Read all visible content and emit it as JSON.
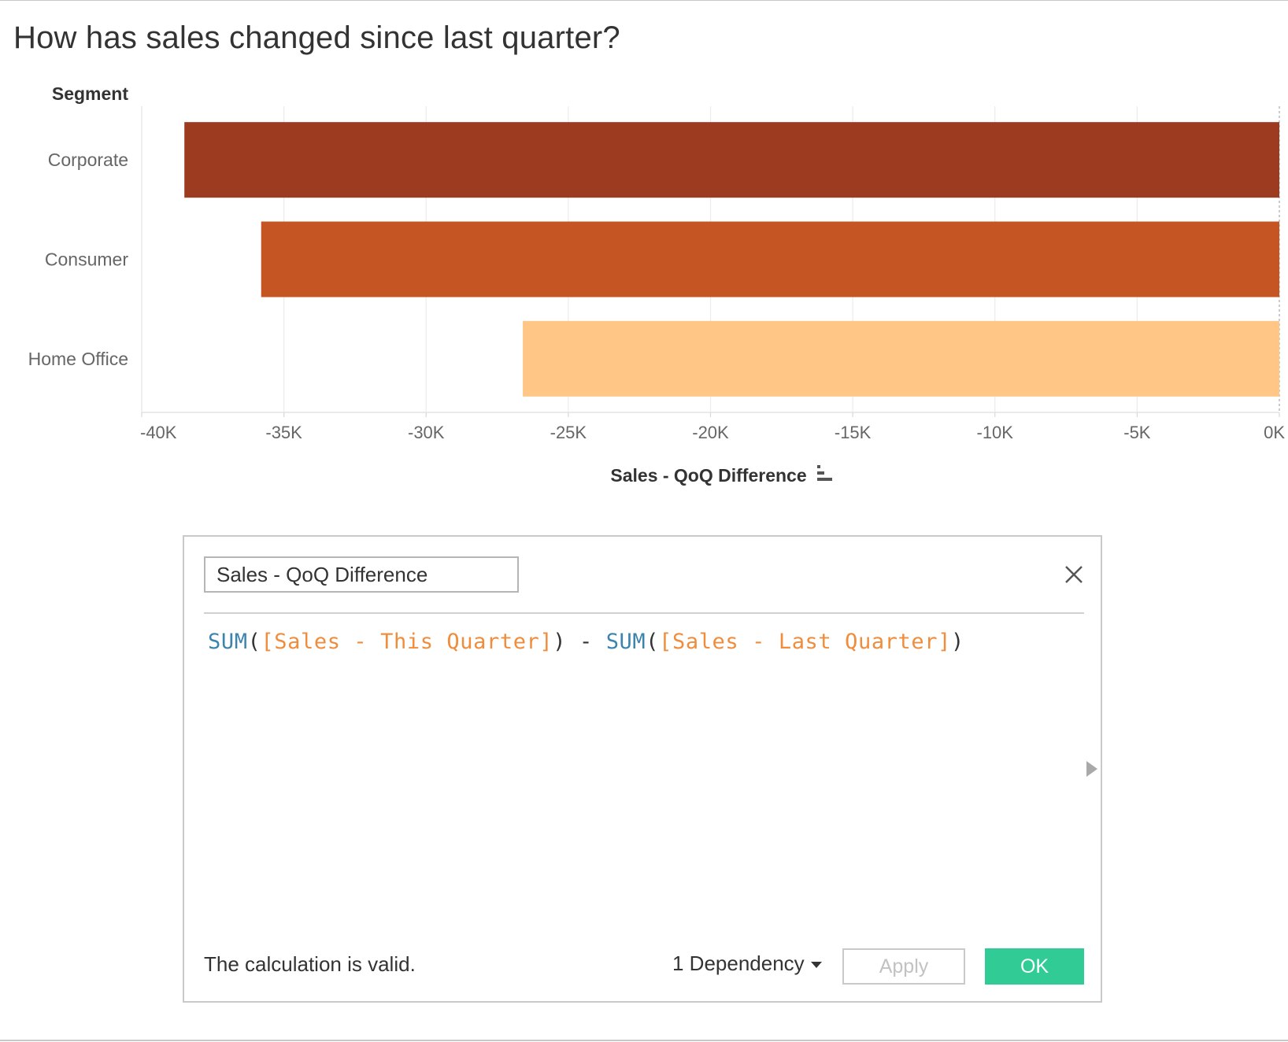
{
  "page_title": "How has sales changed since last quarter?",
  "chart_data": {
    "type": "bar",
    "orientation": "horizontal",
    "row_header": "Segment",
    "categories": [
      "Corporate",
      "Consumer",
      "Home Office"
    ],
    "values": [
      -38500,
      -35800,
      -26600
    ],
    "colors": [
      "#9d3b21",
      "#c55523",
      "#ffc686"
    ],
    "xlim": [
      -40000,
      0
    ],
    "x_ticks": [
      -40000,
      -35000,
      -30000,
      -25000,
      -20000,
      -15000,
      -10000,
      -5000,
      0
    ],
    "x_tick_labels": [
      "-40K",
      "-35K",
      "-30K",
      "-25K",
      "-20K",
      "-15K",
      "-10K",
      "-5K",
      "0K"
    ],
    "xlabel": "Sales - QoQ Difference",
    "grid": true
  },
  "dialog": {
    "name_value": "Sales - QoQ Difference",
    "formula": {
      "fn1": "SUM",
      "open1": "(",
      "field1": "[Sales - This Quarter]",
      "close1": ")",
      "op": " - ",
      "fn2": "SUM",
      "open2": "(",
      "field2": "[Sales - Last Quarter]",
      "close2": ")"
    },
    "status": "The calculation is valid.",
    "dependency_label": "1 Dependency",
    "apply_label": "Apply",
    "ok_label": "OK"
  }
}
